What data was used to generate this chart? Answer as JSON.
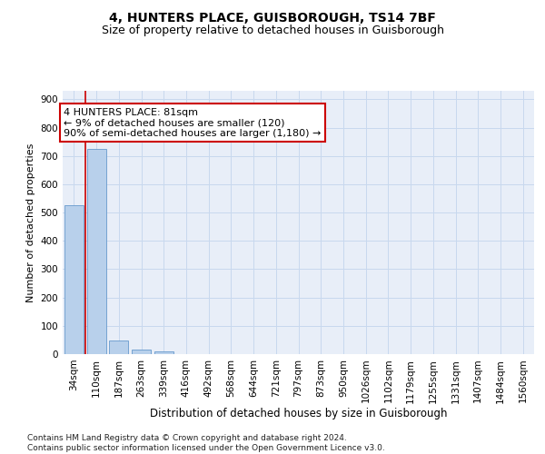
{
  "title": "4, HUNTERS PLACE, GUISBOROUGH, TS14 7BF",
  "subtitle": "Size of property relative to detached houses in Guisborough",
  "xlabel": "Distribution of detached houses by size in Guisborough",
  "ylabel": "Number of detached properties",
  "categories": [
    "34sqm",
    "110sqm",
    "187sqm",
    "263sqm",
    "339sqm",
    "416sqm",
    "492sqm",
    "568sqm",
    "644sqm",
    "721sqm",
    "797sqm",
    "873sqm",
    "950sqm",
    "1026sqm",
    "1102sqm",
    "1179sqm",
    "1255sqm",
    "1331sqm",
    "1407sqm",
    "1484sqm",
    "1560sqm"
  ],
  "values": [
    525,
    725,
    47,
    15,
    10,
    0,
    0,
    0,
    0,
    0,
    0,
    0,
    0,
    0,
    0,
    0,
    0,
    0,
    0,
    0,
    0
  ],
  "bar_color": "#b8d0eb",
  "bar_edge_color": "#6699cc",
  "grid_color": "#c8d8ee",
  "background_color": "#e8eef8",
  "vline_x": 0.5,
  "vline_color": "#cc0000",
  "annotation_text": "4 HUNTERS PLACE: 81sqm\n← 9% of detached houses are smaller (120)\n90% of semi-detached houses are larger (1,180) →",
  "annotation_box_color": "#ffffff",
  "annotation_box_edge_color": "#cc0000",
  "ylim": [
    0,
    930
  ],
  "yticks": [
    0,
    100,
    200,
    300,
    400,
    500,
    600,
    700,
    800,
    900
  ],
  "footnote": "Contains HM Land Registry data © Crown copyright and database right 2024.\nContains public sector information licensed under the Open Government Licence v3.0.",
  "title_fontsize": 10,
  "subtitle_fontsize": 9,
  "xlabel_fontsize": 8.5,
  "ylabel_fontsize": 8,
  "tick_fontsize": 7.5,
  "annotation_fontsize": 8,
  "footnote_fontsize": 6.5
}
